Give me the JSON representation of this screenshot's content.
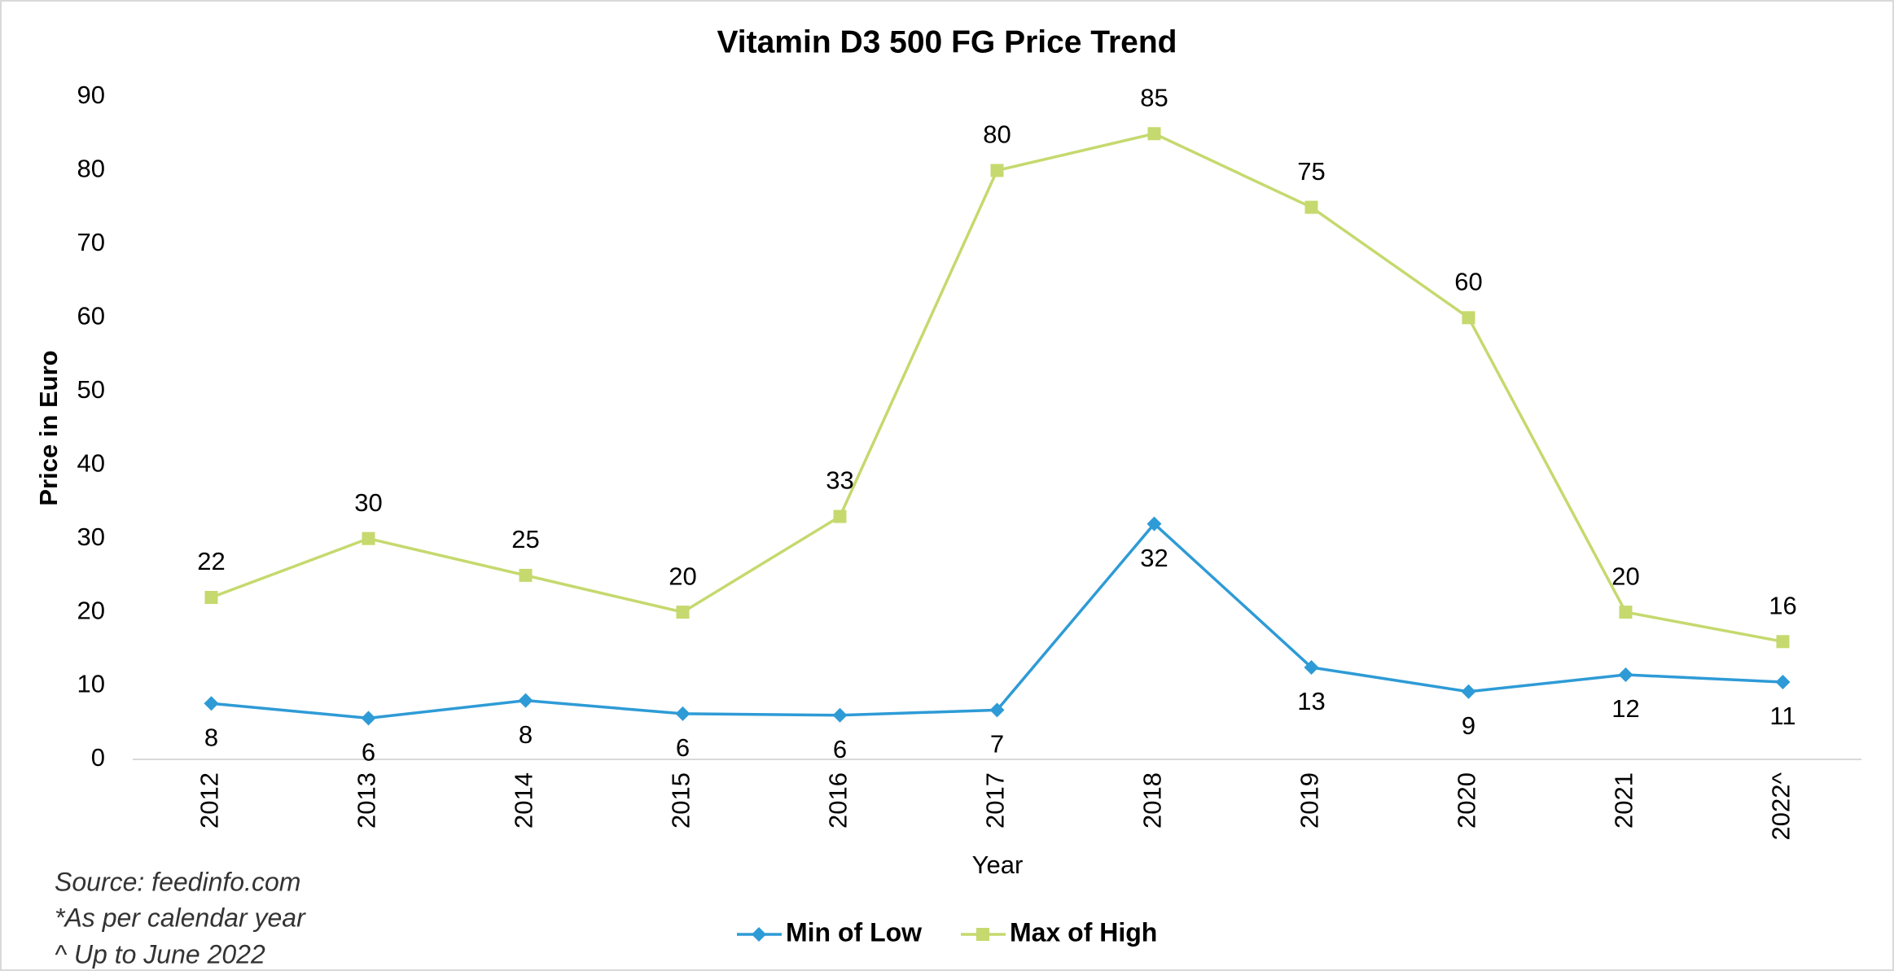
{
  "chart_data": {
    "type": "line",
    "title": "Vitamin D3 500 FG Price Trend",
    "x_label": "Year",
    "y_label": "Price  in Euro",
    "categories": [
      "2012",
      "2013",
      "2014",
      "2015",
      "2016",
      "2017",
      "2018",
      "2019",
      "2020",
      "2021",
      "2022^"
    ],
    "series": [
      {
        "name": "Min of Low",
        "color": "#2e9bd6",
        "marker": "diamond",
        "values": [
          7.6,
          5.6,
          8,
          6.2,
          6,
          6.7,
          32,
          12.5,
          9.2,
          11.5,
          10.5
        ],
        "value_labels": [
          "8",
          "6",
          "8",
          "6",
          "6",
          "7",
          "32",
          "13",
          "9",
          "12",
          "11"
        ]
      },
      {
        "name": "Max of High",
        "color": "#c5d96e",
        "marker": "square",
        "values": [
          22,
          30,
          25,
          20,
          33,
          80,
          85,
          75,
          60,
          20,
          16
        ]
      }
    ],
    "ylim": [
      0,
      90
    ],
    "yticks": [
      0,
      10,
      20,
      30,
      40,
      50,
      60,
      70,
      80,
      90
    ],
    "grid": false,
    "legend": "bottom",
    "notes": [
      "Source: feedinfo.com",
      "*As per calendar year",
      "^ Up to June 2022"
    ]
  }
}
